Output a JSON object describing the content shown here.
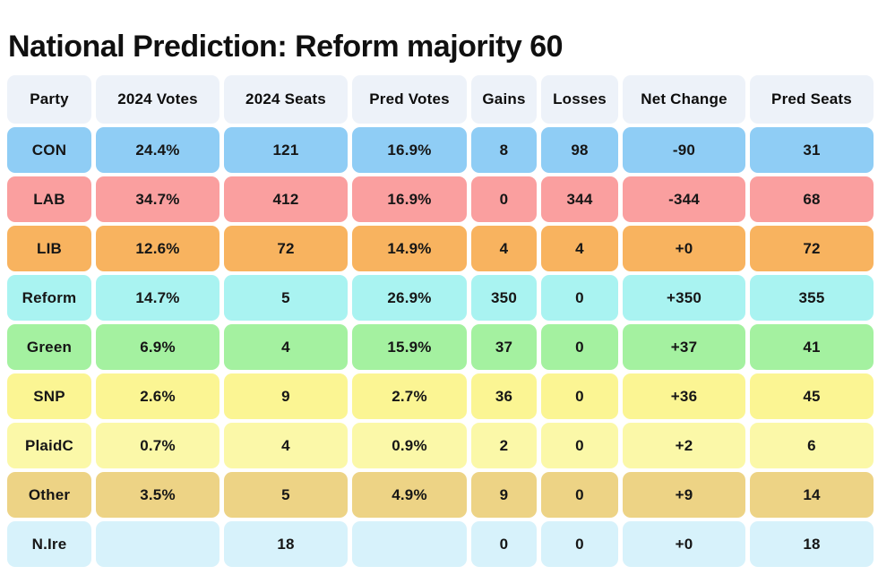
{
  "title": "National Prediction: Reform majority 60",
  "colors": {
    "page_bg": "#ffffff",
    "header_bg": "#edf2f9",
    "text": "#161616",
    "scrollbar_fragment": "#f9a9a3"
  },
  "table": {
    "columns": [
      {
        "key": "party",
        "label": "Party"
      },
      {
        "key": "votes-2024",
        "label": "2024 Votes"
      },
      {
        "key": "seats-2024",
        "label": "2024 Seats"
      },
      {
        "key": "pred-votes",
        "label": "Pred Votes"
      },
      {
        "key": "gains",
        "label": "Gains"
      },
      {
        "key": "losses",
        "label": "Losses"
      },
      {
        "key": "net-change",
        "label": "Net Change"
      },
      {
        "key": "pred-seats",
        "label": "Pred Seats"
      }
    ],
    "rows": [
      {
        "name": "con",
        "color": "#8fcdf5",
        "cells": [
          "CON",
          "24.4%",
          "121",
          "16.9%",
          "8",
          "98",
          "-90",
          "31"
        ]
      },
      {
        "name": "lab",
        "color": "#fa9f9f",
        "cells": [
          "LAB",
          "34.7%",
          "412",
          "16.9%",
          "0",
          "344",
          "-344",
          "68"
        ]
      },
      {
        "name": "lib",
        "color": "#f8b35f",
        "cells": [
          "LIB",
          "12.6%",
          "72",
          "14.9%",
          "4",
          "4",
          "+0",
          "72"
        ]
      },
      {
        "name": "reform",
        "color": "#a9f3f1",
        "cells": [
          "Reform",
          "14.7%",
          "5",
          "26.9%",
          "350",
          "0",
          "+350",
          "355"
        ]
      },
      {
        "name": "green",
        "color": "#a4f1a0",
        "cells": [
          "Green",
          "6.9%",
          "4",
          "15.9%",
          "37",
          "0",
          "+37",
          "41"
        ]
      },
      {
        "name": "snp",
        "color": "#fbf593",
        "cells": [
          "SNP",
          "2.6%",
          "9",
          "2.7%",
          "36",
          "0",
          "+36",
          "45"
        ]
      },
      {
        "name": "plaidc",
        "color": "#fbf8a8",
        "cells": [
          "PlaidC",
          "0.7%",
          "4",
          "0.9%",
          "2",
          "0",
          "+2",
          "6"
        ]
      },
      {
        "name": "other",
        "color": "#edd385",
        "cells": [
          "Other",
          "3.5%",
          "5",
          "4.9%",
          "9",
          "0",
          "+9",
          "14"
        ]
      },
      {
        "name": "nire",
        "color": "#d7f2fb",
        "cells": [
          "N.Ire",
          "",
          "18",
          "",
          "0",
          "0",
          "+0",
          "18"
        ]
      }
    ]
  }
}
